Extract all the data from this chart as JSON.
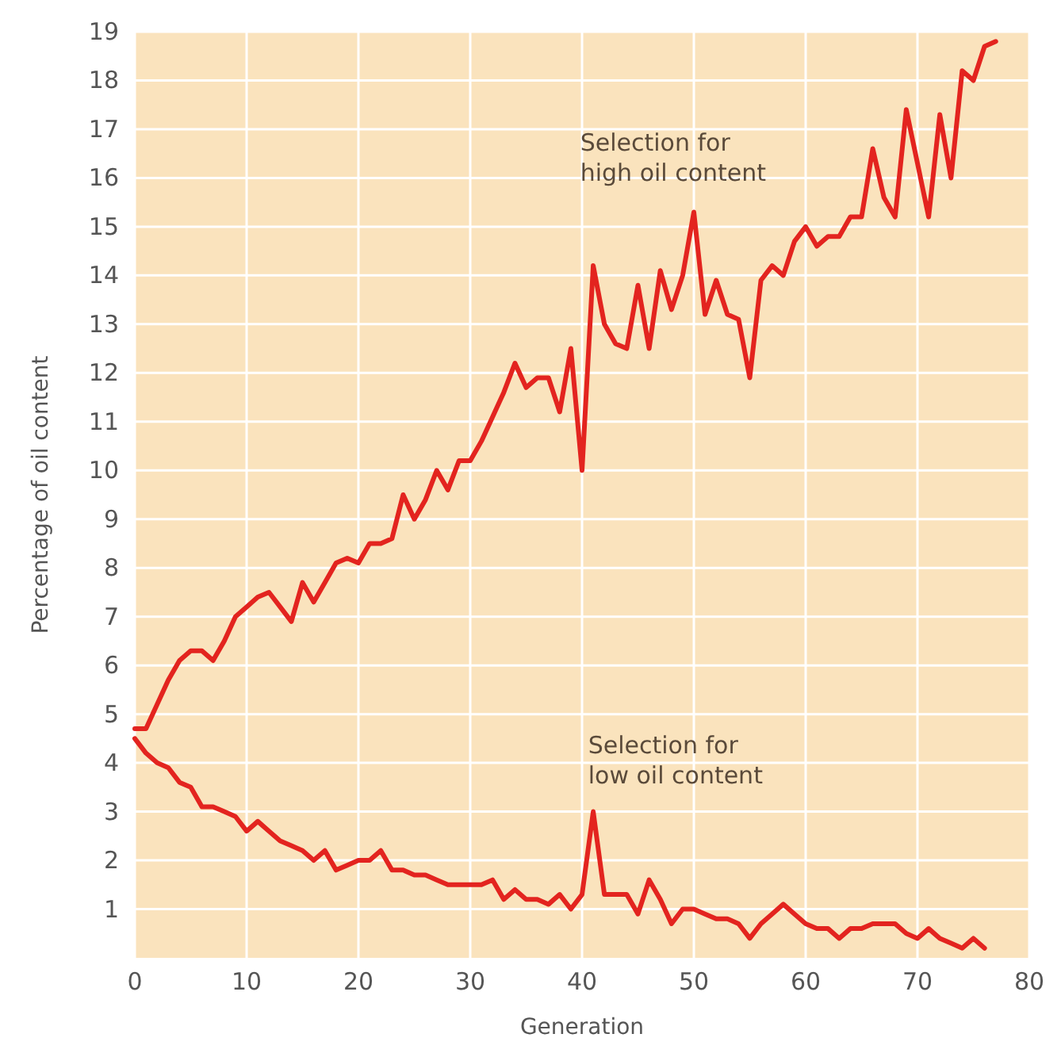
{
  "chart_data": {
    "type": "line",
    "xlabel": "Generation",
    "ylabel": "Percentage of oil content",
    "annotations": [
      "Selection for\nhigh oil content",
      "Selection for\nlow oil content"
    ],
    "x": [
      0,
      1,
      2,
      3,
      4,
      5,
      6,
      7,
      8,
      9,
      10,
      11,
      12,
      13,
      14,
      15,
      16,
      17,
      18,
      19,
      20,
      21,
      22,
      23,
      24,
      25,
      26,
      27,
      28,
      29,
      30,
      31,
      32,
      33,
      34,
      35,
      36,
      37,
      38,
      39,
      40,
      41,
      42,
      43,
      44,
      45,
      46,
      47,
      48,
      49,
      50,
      51,
      52,
      53,
      54,
      55,
      56,
      57,
      58,
      59,
      60,
      61,
      62,
      63,
      64,
      65,
      66,
      67,
      68,
      69,
      70,
      71,
      72,
      73,
      74,
      75,
      76,
      77
    ],
    "series": [
      {
        "color": "#e3241f",
        "values": [
          4.7,
          4.7,
          5.2,
          5.7,
          6.1,
          6.3,
          6.3,
          6.1,
          6.5,
          7.0,
          7.2,
          7.4,
          7.5,
          7.2,
          6.9,
          7.7,
          7.3,
          7.7,
          8.1,
          8.2,
          8.1,
          8.5,
          8.5,
          8.6,
          9.5,
          9.0,
          9.4,
          10.0,
          9.6,
          10.2,
          10.2,
          10.6,
          11.1,
          11.6,
          12.2,
          11.7,
          11.9,
          11.9,
          11.2,
          12.5,
          10.0,
          14.2,
          13.0,
          12.6,
          12.5,
          13.8,
          12.5,
          14.1,
          13.3,
          14.0,
          15.3,
          13.2,
          13.9,
          13.2,
          13.1,
          11.9,
          13.9,
          14.2,
          14.0,
          14.7,
          15.0,
          14.6,
          14.8,
          14.8,
          15.2,
          15.2,
          16.6,
          15.6,
          15.2,
          17.4,
          16.3,
          15.2,
          17.3,
          16.0,
          18.2,
          18.0,
          18.7,
          18.8
        ]
      },
      {
        "color": "#e3241f",
        "x": [
          0,
          1,
          2,
          3,
          4,
          5,
          6,
          7,
          8,
          9,
          10,
          11,
          12,
          13,
          14,
          15,
          16,
          17,
          18,
          19,
          20,
          21,
          22,
          23,
          24,
          25,
          26,
          27,
          28,
          29,
          30,
          31,
          32,
          33,
          34,
          35,
          36,
          37,
          38,
          39,
          40,
          41,
          42,
          43,
          44,
          45,
          46,
          47,
          48,
          49,
          50,
          51,
          52,
          53,
          54,
          55,
          56,
          57,
          58,
          59,
          60,
          61,
          62,
          63,
          64,
          65,
          66,
          67,
          68,
          69,
          70,
          71,
          72,
          73,
          74,
          75,
          76
        ],
        "values": [
          4.5,
          4.2,
          4.0,
          3.9,
          3.6,
          3.5,
          3.1,
          3.1,
          3.0,
          2.9,
          2.6,
          2.8,
          2.6,
          2.4,
          2.3,
          2.2,
          2.0,
          2.2,
          1.8,
          1.9,
          2.0,
          2.0,
          2.2,
          1.8,
          1.8,
          1.7,
          1.7,
          1.6,
          1.5,
          1.5,
          1.5,
          1.5,
          1.6,
          1.2,
          1.4,
          1.2,
          1.2,
          1.1,
          1.3,
          1.0,
          1.3,
          3.0,
          1.3,
          1.3,
          1.3,
          0.9,
          1.6,
          1.2,
          0.7,
          1.0,
          1.0,
          0.9,
          0.8,
          0.8,
          0.7,
          0.4,
          0.7,
          0.9,
          1.1,
          0.9,
          0.7,
          0.6,
          0.6,
          0.4,
          0.6,
          0.6,
          0.7,
          0.7,
          0.7,
          0.5,
          0.4,
          0.6,
          0.4,
          0.3,
          0.2,
          0.4,
          0.2
        ]
      }
    ],
    "xlim": [
      0,
      80
    ],
    "xticks": [
      0,
      10,
      20,
      30,
      40,
      50,
      60,
      70,
      80
    ],
    "ylim": [
      0,
      19
    ],
    "yticks": [
      1,
      2,
      3,
      4,
      5,
      6,
      7,
      8,
      9,
      10,
      11,
      12,
      13,
      14,
      15,
      16,
      17,
      18,
      19
    ],
    "grid": true,
    "line_style": "solid",
    "marker": "none"
  }
}
